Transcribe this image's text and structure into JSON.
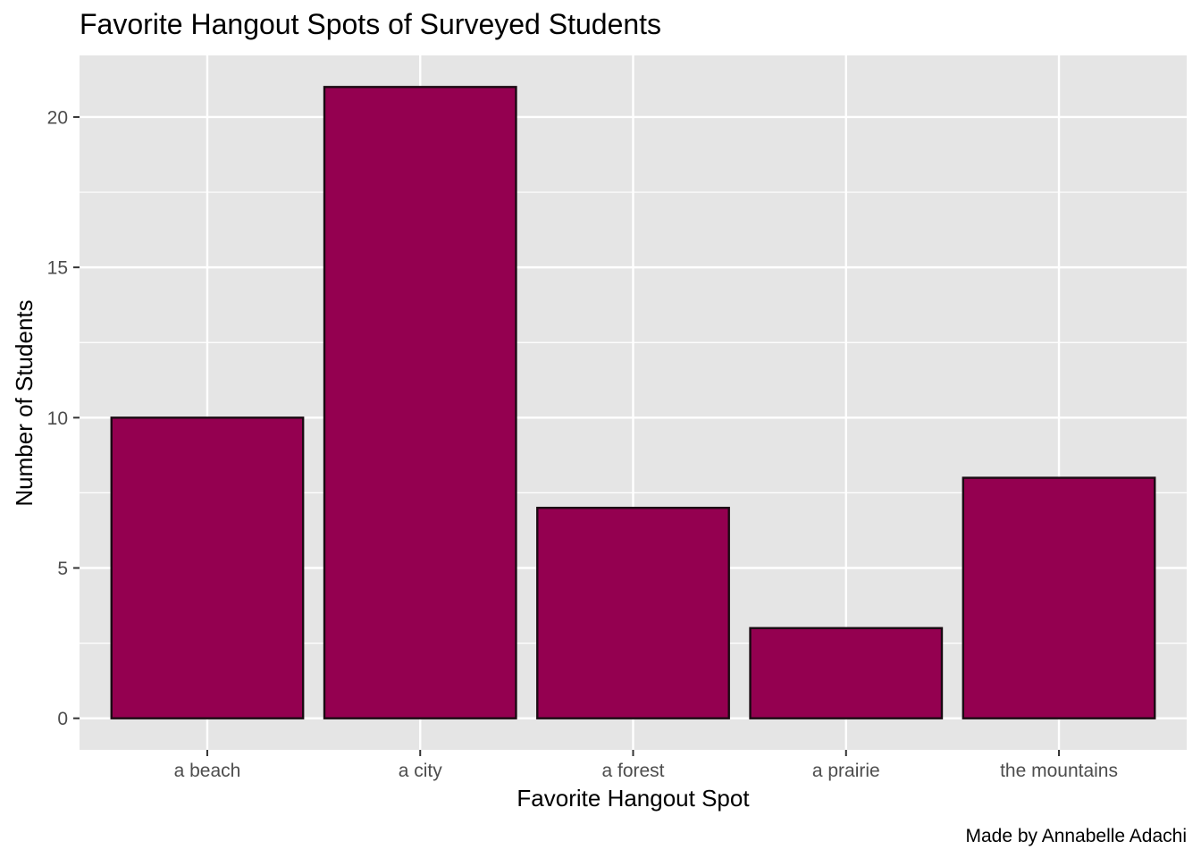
{
  "chart_data": {
    "type": "bar",
    "title": "Favorite Hangout Spots of Surveyed Students",
    "xlabel": "Favorite Hangout Spot",
    "ylabel": "Number of Students",
    "caption": "Made by Annabelle Adachi",
    "categories": [
      "a beach",
      "a city",
      "a forest",
      "a prairie",
      "the mountains"
    ],
    "values": [
      10,
      21,
      7,
      3,
      8
    ],
    "ylim": [
      -1.05,
      22.05
    ],
    "yticks": [
      0,
      5,
      10,
      15,
      20
    ],
    "yticks_minor": [
      2.5,
      7.5,
      12.5,
      17.5
    ],
    "grid": true,
    "colors": {
      "bar_fill": "#940050",
      "bar_outline": "#1a0a12",
      "panel_background": "#e5e5e5",
      "grid": "#ffffff"
    }
  }
}
